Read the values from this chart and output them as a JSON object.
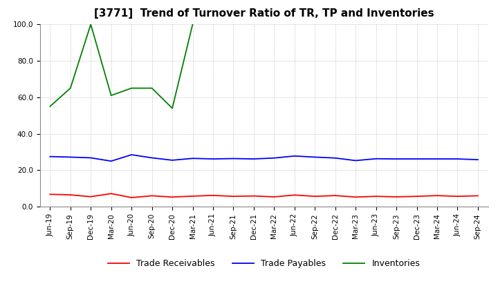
{
  "title": "[3771]  Trend of Turnover Ratio of TR, TP and Inventories",
  "ylim": [
    0.0,
    100.0
  ],
  "yticks": [
    0.0,
    20.0,
    40.0,
    60.0,
    80.0,
    100.0
  ],
  "x_labels": [
    "Jun-19",
    "Sep-19",
    "Dec-19",
    "Mar-20",
    "Jun-20",
    "Sep-20",
    "Dec-20",
    "Mar-21",
    "Jun-21",
    "Sep-21",
    "Dec-21",
    "Mar-22",
    "Jun-22",
    "Sep-22",
    "Dec-22",
    "Mar-23",
    "Jun-23",
    "Sep-23",
    "Dec-23",
    "Mar-24",
    "Jun-24",
    "Sep-24"
  ],
  "trade_receivables": [
    6.8,
    6.5,
    5.5,
    7.2,
    5.0,
    6.0,
    5.3,
    5.8,
    6.2,
    5.7,
    5.9,
    5.4,
    6.4,
    5.7,
    6.1,
    5.3,
    5.7,
    5.4,
    5.7,
    6.1,
    5.7,
    6.0
  ],
  "trade_payables": [
    27.5,
    27.2,
    26.8,
    25.0,
    28.5,
    26.8,
    25.5,
    26.5,
    26.2,
    26.4,
    26.2,
    26.7,
    27.8,
    27.2,
    26.7,
    25.3,
    26.3,
    26.2,
    26.2,
    26.2,
    26.2,
    25.8
  ],
  "inventories": [
    55.0,
    65.0,
    100.0,
    61.0,
    65.0,
    65.0,
    54.0,
    100.0,
    null,
    null,
    null,
    null,
    null,
    null,
    null,
    null,
    null,
    null,
    null,
    null,
    null,
    null
  ],
  "color_tr": "#ff0000",
  "color_tp": "#0000ff",
  "color_inv": "#008000",
  "legend_labels": [
    "Trade Receivables",
    "Trade Payables",
    "Inventories"
  ],
  "background_color": "#ffffff",
  "grid_color": "#b0b0b0",
  "title_fontsize": 11,
  "tick_fontsize": 7.5,
  "legend_fontsize": 9
}
